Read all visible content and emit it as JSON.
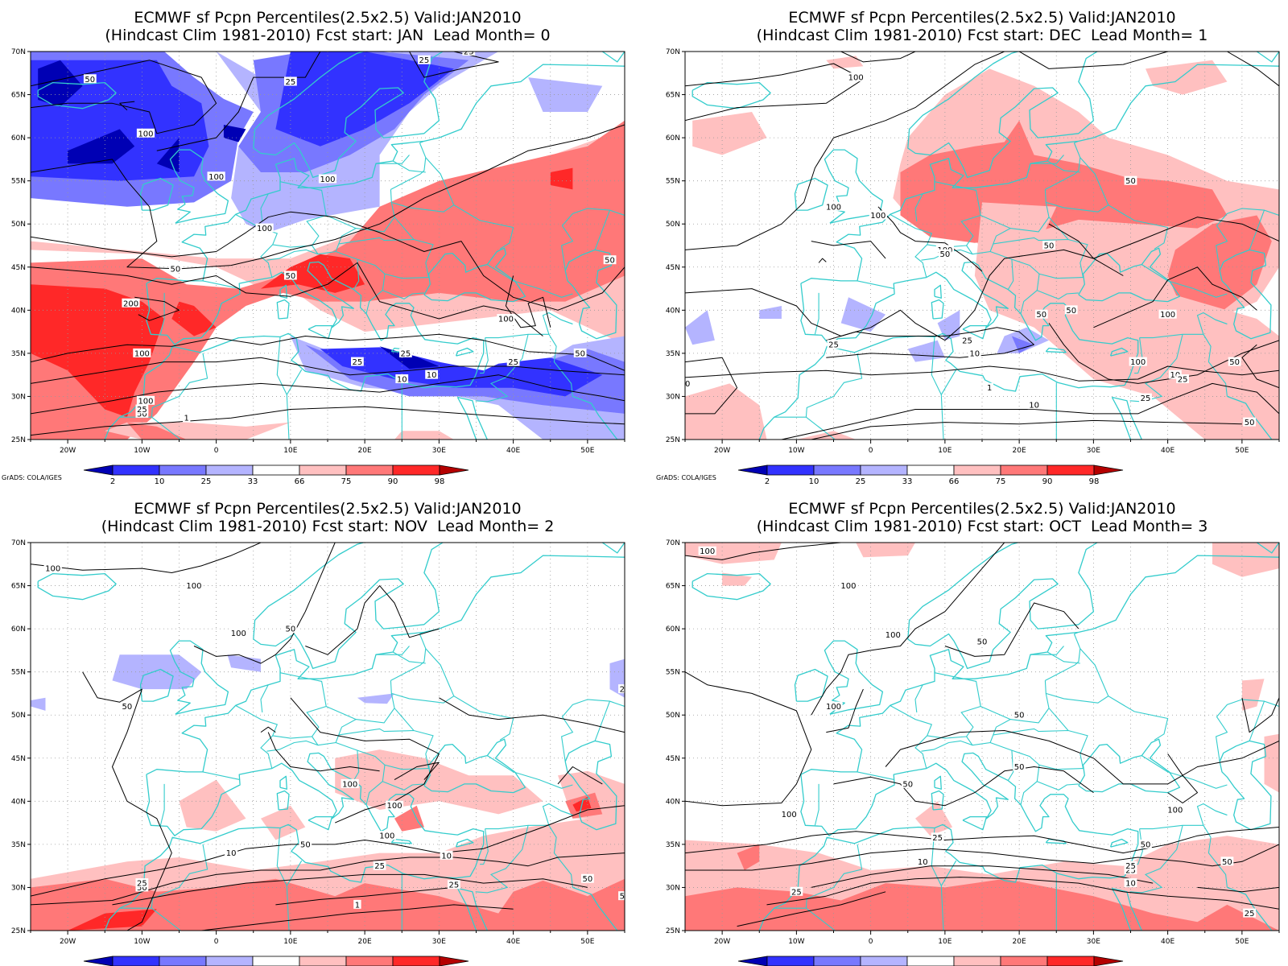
{
  "panels": [
    {
      "title_line1": "ECMWF sf Pcpn Percentiles(2.5x2.5) Valid:JAN2010",
      "title_line2": "(Hindcast Clim 1981-2010) Fcst start: JAN  Lead Month= 0",
      "contour_labels": [
        "50",
        "25",
        "25",
        "100",
        "100",
        "50",
        "50",
        "100",
        "100",
        "200",
        "100",
        "100",
        "50",
        "25",
        "25",
        "10",
        "50",
        "10",
        "25",
        "100",
        "25",
        "50",
        "1",
        "25"
      ]
    },
    {
      "title_line1": "ECMWF sf Pcpn Percentiles(2.5x2.5) Valid:JAN2010",
      "title_line2": "(Hindcast Clim 1981-2010) Fcst start: DEC  Lead Month= 1",
      "contour_labels": [
        "100",
        "100",
        "100",
        "100",
        "50",
        "50",
        "50",
        "50",
        "25",
        "25",
        "10",
        "10",
        "1",
        "50",
        "100",
        "10",
        "50",
        "25",
        "100",
        "50",
        "25",
        "50"
      ]
    },
    {
      "title_line1": "ECMWF sf Pcpn Percentiles(2.5x2.5) Valid:JAN2010",
      "title_line2": "(Hindcast Clim 1981-2010) Fcst start: NOV  Lead Month= 2",
      "contour_labels": [
        "100",
        "100",
        "100",
        "50",
        "50",
        "100",
        "100",
        "100",
        "50",
        "10",
        "25",
        "1",
        "50",
        "25",
        "10",
        "25",
        "50",
        "50",
        "25"
      ]
    },
    {
      "title_line1": "ECMWF sf Pcpn Percentiles(2.5x2.5) Valid:JAN2010",
      "title_line2": "(Hindcast Clim 1981-2010) Fcst start: OCT  Lead Month= 3",
      "contour_labels": [
        "100",
        "100",
        "100",
        "50",
        "100",
        "50",
        "50",
        "100",
        "50",
        "25",
        "10",
        "50",
        "25",
        "25",
        "10",
        "100",
        "25",
        "50",
        "25"
      ]
    }
  ],
  "axes": {
    "lat_labels": [
      "70N",
      "65N",
      "60N",
      "55N",
      "50N",
      "45N",
      "40N",
      "35N",
      "30N",
      "25N"
    ],
    "lon_labels": [
      "20W",
      "10W",
      "0",
      "10E",
      "20E",
      "30E",
      "40E",
      "50E"
    ]
  },
  "colorbar": {
    "labels": [
      "2",
      "10",
      "25",
      "33",
      "66",
      "75",
      "90",
      "98"
    ],
    "colors": [
      "#0000b4",
      "#3232ff",
      "#7878ff",
      "#b4b4ff",
      "#ffffff",
      "#ffc0c0",
      "#ff7878",
      "#ff2828",
      "#b40000"
    ]
  },
  "credit": "GrADS: COLA/IGES",
  "colors": {
    "coastline": "#33cccc",
    "contour": "#000000",
    "grid": "#999999"
  }
}
